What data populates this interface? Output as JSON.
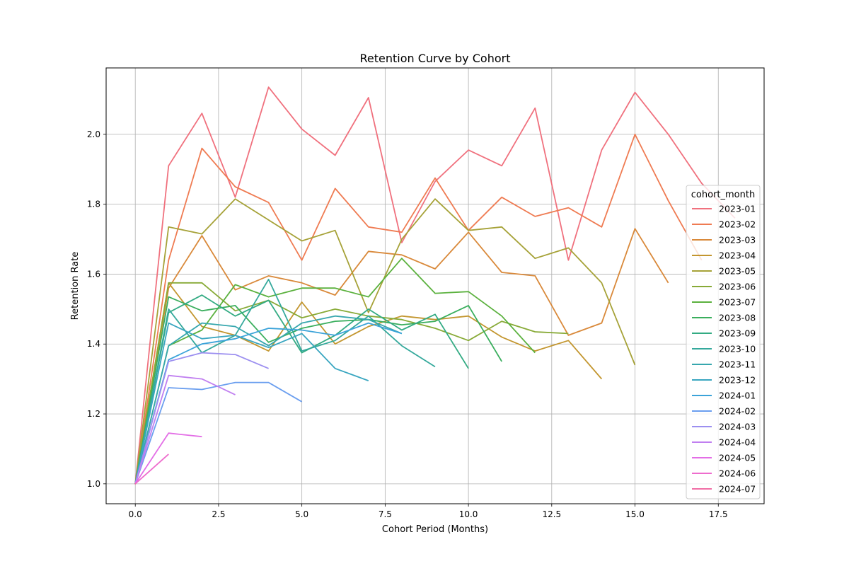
{
  "chart_data": {
    "type": "line",
    "title": "Retention Curve by Cohort",
    "xlabel": "Cohort Period (Months)",
    "ylabel": "Retention Rate",
    "xlim": [
      -0.875,
      18.875
    ],
    "ylim": [
      0.943,
      2.19
    ],
    "xticks": [
      "0.0",
      "2.5",
      "5.0",
      "7.5",
      "10.0",
      "12.5",
      "15.0",
      "17.5"
    ],
    "yticks": [
      "1.0",
      "1.2",
      "1.4",
      "1.6",
      "1.8",
      "2.0"
    ],
    "grid": true,
    "legend_title": "cohort_month",
    "legend_position": "right",
    "series": [
      {
        "name": "2023-01",
        "color": "#f0717e",
        "values": [
          1.0,
          1.91,
          2.06,
          1.82,
          2.135,
          2.015,
          1.94,
          2.105,
          1.69,
          1.865,
          1.955,
          1.91,
          2.075,
          1.64,
          1.955,
          2.12,
          2.0,
          1.86,
          1.76
        ]
      },
      {
        "name": "2023-02",
        "color": "#ef7b52",
        "values": [
          1.0,
          1.64,
          1.96,
          1.85,
          1.805,
          1.64,
          1.845,
          1.735,
          1.72,
          1.875,
          1.725,
          1.82,
          1.765,
          1.79,
          1.735,
          2.0,
          1.81,
          1.64
        ]
      },
      {
        "name": "2023-03",
        "color": "#d9893a",
        "values": [
          1.0,
          1.56,
          1.71,
          1.555,
          1.595,
          1.575,
          1.54,
          1.665,
          1.655,
          1.615,
          1.72,
          1.605,
          1.595,
          1.425,
          1.46,
          1.73,
          1.575
        ]
      },
      {
        "name": "2023-04",
        "color": "#c3962f",
        "values": [
          1.0,
          1.575,
          1.45,
          1.425,
          1.38,
          1.52,
          1.4,
          1.45,
          1.48,
          1.47,
          1.48,
          1.42,
          1.38,
          1.41,
          1.3
        ]
      },
      {
        "name": "2023-05",
        "color": "#a6a238",
        "values": [
          1.0,
          1.735,
          1.715,
          1.815,
          1.755,
          1.695,
          1.725,
          1.49,
          1.7,
          1.815,
          1.725,
          1.735,
          1.645,
          1.675,
          1.575,
          1.34
        ]
      },
      {
        "name": "2023-06",
        "color": "#88aa37",
        "values": [
          1.0,
          1.575,
          1.575,
          1.495,
          1.525,
          1.475,
          1.5,
          1.48,
          1.47,
          1.445,
          1.41,
          1.465,
          1.435,
          1.43
        ]
      },
      {
        "name": "2023-07",
        "color": "#5bb13e",
        "values": [
          1.0,
          1.395,
          1.44,
          1.57,
          1.535,
          1.56,
          1.56,
          1.535,
          1.645,
          1.545,
          1.55,
          1.48,
          1.375
        ]
      },
      {
        "name": "2023-08",
        "color": "#3aae5d",
        "values": [
          1.0,
          1.535,
          1.495,
          1.51,
          1.405,
          1.445,
          1.465,
          1.47,
          1.455,
          1.465,
          1.51,
          1.35
        ]
      },
      {
        "name": "2023-09",
        "color": "#33ab83",
        "values": [
          1.0,
          1.49,
          1.54,
          1.48,
          1.525,
          1.375,
          1.425,
          1.5,
          1.44,
          1.485,
          1.33
        ]
      },
      {
        "name": "2023-10",
        "color": "#35a99c",
        "values": [
          1.0,
          1.5,
          1.375,
          1.425,
          1.585,
          1.38,
          1.41,
          1.48,
          1.395,
          1.335
        ]
      },
      {
        "name": "2023-11",
        "color": "#37a7ae",
        "values": [
          1.0,
          1.395,
          1.46,
          1.45,
          1.395,
          1.46,
          1.48,
          1.47,
          1.43
        ]
      },
      {
        "name": "2023-12",
        "color": "#39a6c0",
        "values": [
          1.0,
          1.46,
          1.415,
          1.425,
          1.39,
          1.43,
          1.33,
          1.295
        ]
      },
      {
        "name": "2024-01",
        "color": "#3ba3d9",
        "values": [
          1.0,
          1.355,
          1.4,
          1.415,
          1.445,
          1.44,
          1.425,
          1.46,
          1.43
        ]
      },
      {
        "name": "2024-02",
        "color": "#6a9eef",
        "values": [
          1.0,
          1.275,
          1.27,
          1.29,
          1.29,
          1.235
        ]
      },
      {
        "name": "2024-03",
        "color": "#9c8ff0",
        "values": [
          1.0,
          1.35,
          1.375,
          1.37,
          1.33
        ]
      },
      {
        "name": "2024-04",
        "color": "#c07ff0",
        "values": [
          1.0,
          1.31,
          1.3,
          1.255
        ]
      },
      {
        "name": "2024-05",
        "color": "#e36ee6",
        "values": [
          1.0,
          1.145,
          1.135
        ]
      },
      {
        "name": "2024-06",
        "color": "#ee6ccd",
        "values": [
          1.0,
          1.085
        ]
      },
      {
        "name": "2024-07",
        "color": "#f06ea5",
        "values": [
          1.0
        ]
      }
    ]
  }
}
